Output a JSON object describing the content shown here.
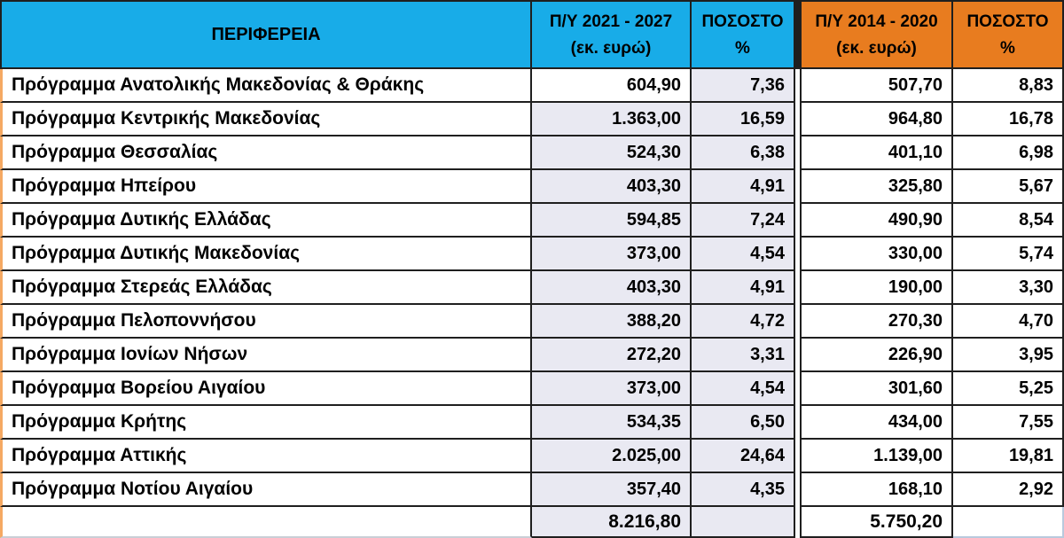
{
  "table": {
    "title": "Regional operational programme budgets comparison",
    "colors": {
      "header_blue": "#18ACE8",
      "header_orange": "#E87C1F",
      "row_fill_lavender": "#E9E9F2",
      "left_accent": "#F5A963",
      "border_dark": "#1F1F1F"
    },
    "header": {
      "region": "ΠΕΡΙΦΕΡΕΙΑ",
      "py2127": {
        "line1": "Π/Υ 2021 - 2027",
        "line2": "(εκ. ευρώ)"
      },
      "pct1": {
        "line1": "ΠΟΣΟΣΤΟ",
        "line2": "%"
      },
      "py1420": {
        "line1": "Π/Υ 2014 - 2020",
        "line2": "(εκ. ευρώ)"
      },
      "pct2": {
        "line1": "ΠΟΣΟΣΤΟ",
        "line2": "%"
      }
    },
    "rows": [
      {
        "name": "Πρόγραμμα Ανατολικής Μακεδονίας & Θράκης",
        "py2127": "604,90",
        "pct2127": "7,36",
        "py1420": "507,70",
        "pct1420": "8,83"
      },
      {
        "name": "Πρόγραμμα Κεντρικής Μακεδονίας",
        "py2127": "1.363,00",
        "pct2127": "16,59",
        "py1420": "964,80",
        "pct1420": "16,78"
      },
      {
        "name": "Πρόγραμμα Θεσσαλίας",
        "py2127": "524,30",
        "pct2127": "6,38",
        "py1420": "401,10",
        "pct1420": "6,98"
      },
      {
        "name": "Πρόγραμμα Ηπείρου",
        "py2127": "403,30",
        "pct2127": "4,91",
        "py1420": "325,80",
        "pct1420": "5,67"
      },
      {
        "name": "Πρόγραμμα Δυτικής Ελλάδας",
        "py2127": "594,85",
        "pct2127": "7,24",
        "py1420": "490,90",
        "pct1420": "8,54"
      },
      {
        "name": "Πρόγραμμα Δυτικής Μακεδονίας",
        "py2127": "373,00",
        "pct2127": "4,54",
        "py1420": "330,00",
        "pct1420": "5,74"
      },
      {
        "name": "Πρόγραμμα Στερεάς Ελλάδας",
        "py2127": "403,30",
        "pct2127": "4,91",
        "py1420": "190,00",
        "pct1420": "3,30"
      },
      {
        "name": "Πρόγραμμα Πελοποννήσου",
        "py2127": "388,20",
        "pct2127": "4,72",
        "py1420": "270,30",
        "pct1420": "4,70"
      },
      {
        "name": "Πρόγραμμα Ιονίων Νήσων",
        "py2127": "272,20",
        "pct2127": "3,31",
        "py1420": "226,90",
        "pct1420": "3,95"
      },
      {
        "name": "Πρόγραμμα Βορείου Αιγαίου",
        "py2127": "373,00",
        "pct2127": "4,54",
        "py1420": "301,60",
        "pct1420": "5,25"
      },
      {
        "name": "Πρόγραμμα Κρήτης",
        "py2127": "534,35",
        "pct2127": "6,50",
        "py1420": "434,00",
        "pct1420": "7,55"
      },
      {
        "name": "Πρόγραμμα Αττικής",
        "py2127": "2.025,00",
        "pct2127": "24,64",
        "py1420": "1.139,00",
        "pct1420": "19,81"
      },
      {
        "name": "Πρόγραμμα Νοτίου Αιγαίου",
        "py2127": "357,40",
        "pct2127": "4,35",
        "py1420": "168,10",
        "pct1420": "2,92"
      }
    ],
    "totals": {
      "py2127": "8.216,80",
      "py1420": "5.750,20"
    }
  }
}
